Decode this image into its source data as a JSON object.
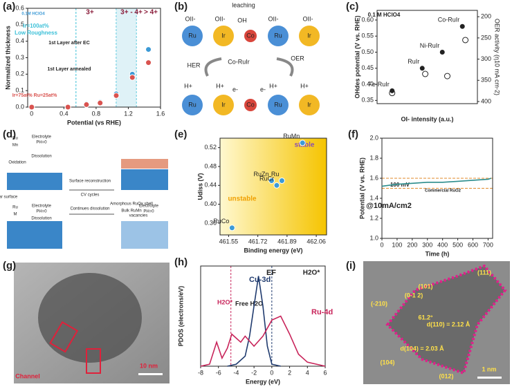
{
  "chart_data": [
    {
      "type": "scatter",
      "panel_label": "(a)",
      "x_label": "Potential (vs RHE)",
      "y_label": "Normalized thickness",
      "xlim": [
        -0.05,
        1.6
      ],
      "ylim": [
        0,
        0.6
      ],
      "xticks": [
        0,
        0.4,
        0.8,
        1.2,
        1.6
      ],
      "yticks": [
        {
          "value": 0,
          "label": "0.0"
        },
        0.1,
        0.2,
        0.3,
        0.4,
        0.5,
        0.6
      ],
      "regions": [
        0.55,
        1.05,
        1.3
      ],
      "annotations": [
        "0.1M HClO4",
        "3+",
        "3+ - 4+",
        "> 4+",
        "Ir=100at%",
        "Low Roughness",
        "1st Layer after EC",
        "1st Layer annealed",
        "Ir=75at% Ru=25at%"
      ],
      "x": [
        0,
        0.45,
        0.68,
        0.85,
        1.05,
        1.25,
        1.45
      ],
      "series": [
        {
          "color": "#3c9ad6",
          "values": [
            0,
            0,
            0.02,
            0.03,
            0.08,
            0.2,
            0.35
          ]
        },
        {
          "color": "#d9534f",
          "values": [
            0,
            0,
            0.015,
            0.025,
            0.07,
            0.18,
            0.27
          ]
        }
      ]
    },
    {
      "type": "scatter",
      "panel_label": "(c)",
      "x_label": "OI- intensity (a.u.)",
      "y_label": "OHdes potential (V vs. RHE)",
      "y2_label": "OER activity (η10 mA cm-2)",
      "xlim": [
        0,
        1
      ],
      "ylim": [
        0.34,
        0.63
      ],
      "y2lim": [
        405,
        185
      ],
      "yticks": [
        {
          "value": 0.35,
          "label": "0.35"
        },
        {
          "value": 0.4,
          "label": "0.40"
        },
        {
          "value": 0.45,
          "label": "0.45"
        },
        {
          "value": 0.5,
          "label": "0.50"
        },
        {
          "value": 0.55,
          "label": "0.55"
        },
        {
          "value": 0.6,
          "label": "0.60"
        }
      ],
      "y2ticks": [
        200,
        250,
        300,
        350,
        400
      ],
      "annotations": [
        "0.1 M HClO4"
      ],
      "series": [
        {
          "color": "#222222",
          "x": [
            0.15,
            0.45,
            0.65,
            0.85
          ],
          "values": [
            0.38,
            0.45,
            0.5,
            0.58
          ],
          "labels": [
            "Fe-RuIr",
            "RuIr",
            "Ni-RuIr",
            "Co-RuIr"
          ]
        },
        {
          "color": "#222222",
          "axis": "y2",
          "hollow": true,
          "x": [
            0.15,
            0.48,
            0.7,
            0.88
          ],
          "values": [
            380,
            335,
            340,
            255
          ]
        }
      ]
    },
    {
      "type": "scatter",
      "panel_label": "(e)",
      "x_label": "Binding energy (eV)",
      "y_label": "Udiss (V)",
      "xlim": [
        461.5,
        462.12
      ],
      "ylim": [
        0.335,
        0.54
      ],
      "xticks": [
        461.55,
        461.72,
        461.89,
        462.06
      ],
      "yticks": [
        0.36,
        {
          "value": 0.4,
          "label": "0.40"
        },
        0.44,
        0.48,
        0.52
      ],
      "annotations": [
        "stable",
        "unstable"
      ],
      "series": [
        {
          "color": "#3c9ad6",
          "x": [
            461.57,
            461.8,
            461.83,
            461.86,
            461.98
          ],
          "values": [
            0.35,
            0.45,
            0.44,
            0.45,
            0.53
          ],
          "labels": [
            "RuCo",
            "RuZn",
            "RuCr",
            "Ru",
            "RuMn"
          ]
        }
      ]
    },
    {
      "type": "line",
      "panel_label": "(f)",
      "x_label": "Time (h)",
      "y_label": "Potential (V vs. RHE)",
      "xlim": [
        0,
        730
      ],
      "ylim": [
        1.0,
        2.0
      ],
      "xticks": [
        0,
        100,
        200,
        300,
        400,
        500,
        600,
        700
      ],
      "yticks": [
        {
          "value": 1.0,
          "label": "1.0"
        },
        {
          "value": 1.2,
          "label": "1.2"
        },
        {
          "value": 1.4,
          "label": "1.4"
        },
        {
          "value": 1.6,
          "label": "1.6"
        },
        {
          "value": 1.8,
          "label": "1.8"
        },
        {
          "value": 2.0,
          "label": "2.0"
        }
      ],
      "hlines": [
        1.5,
        1.6
      ],
      "annotations": [
        "100 mV",
        "@10mA/cm2",
        "Commercial RuO2"
      ],
      "x": [
        0,
        50,
        100,
        200,
        300,
        400,
        500,
        600,
        700,
        720
      ],
      "series": [
        {
          "color": "#2a8c8c",
          "values": [
            1.52,
            1.53,
            1.54,
            1.55,
            1.56,
            1.56,
            1.57,
            1.58,
            1.59,
            1.6
          ]
        }
      ]
    },
    {
      "type": "line",
      "panel_label": "(h)",
      "x_label": "Energy (eV)",
      "y_label": "PDOS (electrons/eV)",
      "xlim": [
        -8,
        6
      ],
      "ylim": [
        0,
        5
      ],
      "xticks": [
        -8,
        -6,
        -4,
        -2,
        0,
        2,
        4,
        6
      ],
      "vlines": [
        0,
        -4.6
      ],
      "annotations": [
        "EF",
        "H2O*",
        "Free H2O",
        "H2O*"
      ],
      "series": [
        {
          "name": "Cu-3d",
          "color": "#1f3a6e",
          "x": [
            -5,
            -4,
            -3,
            -2.5,
            -2,
            -1.5,
            -1,
            -0.5,
            0,
            1
          ],
          "values": [
            0,
            0.1,
            0.5,
            1.5,
            3,
            4.5,
            3,
            1,
            0.1,
            0
          ]
        },
        {
          "name": "Ru-4d",
          "color": "#c8245a",
          "x": [
            -8,
            -7,
            -6.2,
            -5.6,
            -5,
            -4.5,
            -4,
            -3.5,
            -3,
            -2,
            -1,
            0,
            1,
            2,
            3,
            4,
            6
          ],
          "values": [
            0,
            0.1,
            1.2,
            0.4,
            0.9,
            1.6,
            1.4,
            1.2,
            1.5,
            1.0,
            1.5,
            2.3,
            2.5,
            1.6,
            0.6,
            0.2,
            0
          ]
        }
      ]
    }
  ],
  "figures": [
    {
      "texts": [
        "(b)",
        "leaching",
        "OII-",
        "OII-",
        "OH",
        "OII-",
        "OII-",
        "Ru",
        "Ir",
        "Co",
        "Ru",
        "Ir",
        "Co-RuIr",
        "OER",
        "HER",
        "H+",
        "H+",
        "H+",
        "H+",
        "e-",
        "e-",
        "Ru",
        "Ir",
        "Co",
        "Ru",
        "Ir"
      ]
    },
    {
      "texts": [
        "(d)",
        "Ru",
        "Mn",
        "Electrolyte",
        "PH=0",
        "Dissolution",
        "Oxidation",
        "Near surface",
        "Surface reconstruction",
        "CV cycles",
        "Continues dissolution",
        "Amorphous RuOx shell",
        "Bulk RuMn",
        "Ru",
        "M",
        "Electrolyte",
        "PH=0",
        "Dissolution",
        "vacancies",
        "Electrolyte",
        "PH=0"
      ]
    },
    {
      "texts": [
        "(g)",
        "Channel",
        "10 nm"
      ]
    },
    {
      "texts": [
        "(i)",
        "(111)",
        "(101)",
        "(0-1 2)",
        "(-210)",
        "(104)",
        "(012)",
        "d(110) = 2.12 Å",
        "d(104) = 2.03 Å",
        "61.2°",
        "1 nm"
      ]
    }
  ]
}
